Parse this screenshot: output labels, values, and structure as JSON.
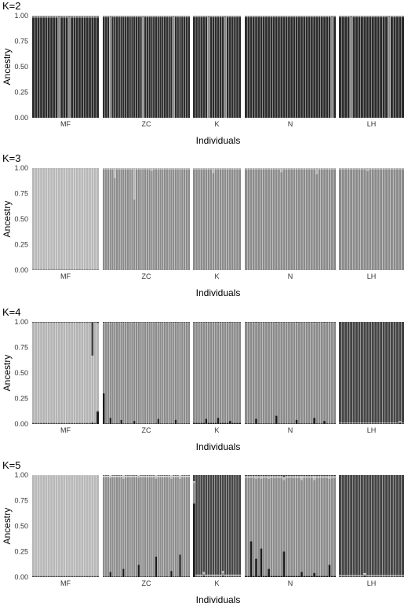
{
  "chart_data": [
    {
      "type": "bar",
      "title": "K=2",
      "xlabel": "Individuals",
      "ylabel": "Ancestry",
      "ylim": [
        0,
        1
      ],
      "yticks": [
        "0.00",
        "0.25",
        "0.50",
        "0.75",
        "1.00"
      ],
      "grid": false,
      "stacked": true,
      "populations": [
        {
          "name": "MF",
          "individuals": 26,
          "series": [
            {
              "values": [
                0.98
              ]
            }
          ],
          "deviations": [
            [
              10,
              0,
              0.06
            ],
            [
              14,
              0,
              0.03
            ]
          ]
        },
        {
          "name": "ZC",
          "individuals": 40,
          "series": [
            {
              "values": [
                0.985
              ]
            }
          ],
          "deviations": [
            [
              3,
              0,
              0.95
            ],
            [
              18,
              0,
              0.91
            ],
            [
              32,
              0,
              0.94
            ]
          ]
        },
        {
          "name": "K",
          "individuals": 20,
          "series": [
            {
              "values": [
                0.985
              ]
            }
          ],
          "deviations": [
            [
              6,
              0,
              0.96
            ],
            [
              13,
              0,
              0.94
            ]
          ]
        },
        {
          "name": "N",
          "individuals": 36,
          "series": [
            {
              "values": [
                0.985
              ]
            }
          ],
          "deviations": [
            [
              34,
              0,
              0.92
            ]
          ]
        },
        {
          "name": "LH",
          "individuals": 24,
          "series": [
            {
              "values": [
                0.985
              ]
            }
          ],
          "deviations": [
            [
              4,
              0,
              0.97
            ],
            [
              18,
              0,
              0.96
            ]
          ]
        }
      ]
    },
    {
      "type": "bar",
      "title": "K=3",
      "xlabel": "Individuals",
      "ylabel": "Ancestry",
      "ylim": [
        0,
        1
      ],
      "yticks": [
        "0.00",
        "0.25",
        "0.50",
        "0.75",
        "1.00"
      ],
      "grid": false,
      "stacked": true,
      "populations": [
        {
          "name": "MF",
          "individuals": 26,
          "series": [
            {
              "values": [
                0.01,
                0.985
              ]
            }
          ],
          "deviations": [
            [
              23,
              0.01,
              0.63
            ]
          ]
        },
        {
          "name": "ZC",
          "individuals": 40,
          "series": [
            {
              "values": [
                0.985,
                0.01
              ]
            }
          ],
          "deviations": [
            [
              5,
              0.9,
              0.02
            ],
            [
              14,
              0.69,
              0.02
            ],
            [
              22,
              0.97,
              0.02
            ]
          ]
        },
        {
          "name": "K",
          "individuals": 20,
          "series": [
            {
              "values": [
                0.985,
                0.01
              ]
            }
          ],
          "deviations": [
            [
              8,
              0.95,
              0.03
            ]
          ]
        },
        {
          "name": "N",
          "individuals": 36,
          "series": [
            {
              "values": [
                0.985,
                0.01
              ]
            }
          ],
          "deviations": [
            [
              14,
              0.96,
              0.02
            ],
            [
              28,
              0.94,
              0.03
            ]
          ]
        },
        {
          "name": "LH",
          "individuals": 24,
          "series": [
            {
              "values": [
                0.985,
                0.01
              ]
            }
          ],
          "deviations": [
            [
              10,
              0.97,
              0.02
            ]
          ]
        }
      ]
    },
    {
      "type": "bar",
      "title": "K=4",
      "xlabel": "Individuals",
      "ylabel": "Ancestry",
      "ylim": [
        0,
        1
      ],
      "yticks": [
        "0.00",
        "0.25",
        "0.50",
        "0.75",
        "1.00"
      ],
      "grid": false,
      "stacked": true,
      "populations": [
        {
          "name": "MF",
          "individuals": 26,
          "series": [
            {
              "values": [
                0.005,
                0.005,
                0.985,
                0.005
              ]
            }
          ],
          "deviations": [
            [
              23,
              0.01,
              0.01,
              0.65,
              0.0
            ],
            [
              25,
              0.12,
              0.01,
              0.86,
              0.0
            ]
          ]
        },
        {
          "name": "ZC",
          "individuals": 40,
          "series": [
            {
              "values": [
                0.005,
                0.985,
                0.005,
                0.005
              ]
            }
          ],
          "deviations": [
            [
              0,
              0.3,
              0.68,
              0.01,
              0.0
            ],
            [
              3,
              0.06,
              0.92,
              0.01,
              0.0
            ],
            [
              8,
              0.04,
              0.94,
              0.01,
              0.0
            ],
            [
              14,
              0.03,
              0.95,
              0.01,
              0.0
            ],
            [
              25,
              0.05,
              0.93,
              0.01,
              0.0
            ],
            [
              33,
              0.04,
              0.94,
              0.01,
              0.0
            ]
          ]
        },
        {
          "name": "K",
          "individuals": 20,
          "series": [
            {
              "values": [
                0.01,
                0.98,
                0.005,
                0.005
              ]
            }
          ],
          "deviations": [
            [
              5,
              0.05,
              0.93,
              0.01,
              0.0
            ],
            [
              10,
              0.06,
              0.92,
              0.01,
              0.0
            ],
            [
              15,
              0.03,
              0.95,
              0.01,
              0.0
            ]
          ]
        },
        {
          "name": "N",
          "individuals": 36,
          "series": [
            {
              "values": [
                0.005,
                0.985,
                0.005,
                0.005
              ]
            }
          ],
          "deviations": [
            [
              4,
              0.05,
              0.93,
              0.01,
              0.0
            ],
            [
              12,
              0.08,
              0.9,
              0.01,
              0.0
            ],
            [
              20,
              0.04,
              0.94,
              0.01,
              0.0
            ],
            [
              27,
              0.06,
              0.92,
              0.01,
              0.0
            ],
            [
              31,
              0.03,
              0.95,
              0.01,
              0.0
            ]
          ]
        },
        {
          "name": "LH",
          "individuals": 24,
          "series": [
            {
              "values": [
                0.005,
                0.005,
                0.005,
                0.985
              ]
            }
          ],
          "deviations": [
            [
              22,
              0.01,
              0.01,
              0.01,
              0.84
            ]
          ]
        }
      ]
    },
    {
      "type": "bar",
      "title": "K=5",
      "xlabel": "Individuals",
      "ylabel": "Ancestry",
      "ylim": [
        0,
        1
      ],
      "yticks": [
        "0.00",
        "0.25",
        "0.50",
        "0.75",
        "1.00"
      ],
      "grid": false,
      "stacked": true,
      "populations": [
        {
          "name": "MF",
          "individuals": 26,
          "series": [
            {
              "values": [
                0.005,
                0.005,
                0.985,
                0.005,
                0.0
              ]
            }
          ],
          "deviations": []
        },
        {
          "name": "ZC",
          "individuals": 40,
          "series": [
            {
              "values": [
                0.005,
                0.97,
                0.01,
                0.01,
                0.005
              ]
            }
          ],
          "deviations": [
            [
              3,
              0.05,
              0.92,
              0.01,
              0.02,
              0.0
            ],
            [
              9,
              0.08,
              0.88,
              0.02,
              0.02,
              0.0
            ],
            [
              16,
              0.12,
              0.85,
              0.02,
              0.01,
              0.0
            ],
            [
              24,
              0.2,
              0.76,
              0.02,
              0.02,
              0.0
            ],
            [
              31,
              0.06,
              0.9,
              0.02,
              0.02,
              0.0
            ],
            [
              35,
              0.22,
              0.74,
              0.02,
              0.02,
              0.0
            ]
          ]
        },
        {
          "name": "K",
          "individuals": 20,
          "series": [
            {
              "values": [
                0.005,
                0.01,
                0.005,
                0.005,
                0.93
              ]
            }
          ],
          "deviations": [
            [
              0,
              0.72,
              0.2,
              0.01,
              0.01,
              0.06
            ],
            [
              4,
              0.01,
              0.02,
              0.01,
              0.01,
              0.85
            ],
            [
              12,
              0.01,
              0.03,
              0.01,
              0.01,
              0.88
            ]
          ]
        },
        {
          "name": "N",
          "individuals": 36,
          "series": [
            {
              "values": [
                0.01,
                0.96,
                0.01,
                0.01,
                0.005
              ]
            }
          ],
          "deviations": [
            [
              2,
              0.35,
              0.62,
              0.01,
              0.01,
              0.0
            ],
            [
              4,
              0.18,
              0.78,
              0.02,
              0.01,
              0.0
            ],
            [
              6,
              0.28,
              0.68,
              0.02,
              0.01,
              0.0
            ],
            [
              9,
              0.08,
              0.88,
              0.02,
              0.01,
              0.0
            ],
            [
              15,
              0.25,
              0.7,
              0.02,
              0.01,
              0.0
            ],
            [
              22,
              0.05,
              0.9,
              0.02,
              0.02,
              0.0
            ],
            [
              27,
              0.04,
              0.91,
              0.02,
              0.02,
              0.0
            ],
            [
              33,
              0.12,
              0.84,
              0.02,
              0.01,
              0.0
            ]
          ]
        },
        {
          "name": "LH",
          "individuals": 24,
          "series": [
            {
              "values": [
                0.005,
                0.005,
                0.005,
                0.005,
                0.975
              ]
            }
          ],
          "deviations": [
            [
              9,
              0.01,
              0.01,
              0.01,
              0.01,
              0.88
            ]
          ]
        }
      ]
    }
  ],
  "colors": {
    "background": "#ffffff",
    "separator": "#ffffff",
    "ancestry_palette": {
      "K=2": [
        "#2b2b2b",
        "#8c8c8c"
      ],
      "K=3": [
        "#8a8a8a",
        "#b8b8b8"
      ],
      "K=4": [
        "#1c1c1c",
        "#8a8a8a",
        "#b4b4b4",
        "#444444"
      ],
      "K=5": [
        "#1c1c1c",
        "#8c8c8c",
        "#b8b8b8",
        "#d6d6d6",
        "#444444"
      ]
    }
  }
}
